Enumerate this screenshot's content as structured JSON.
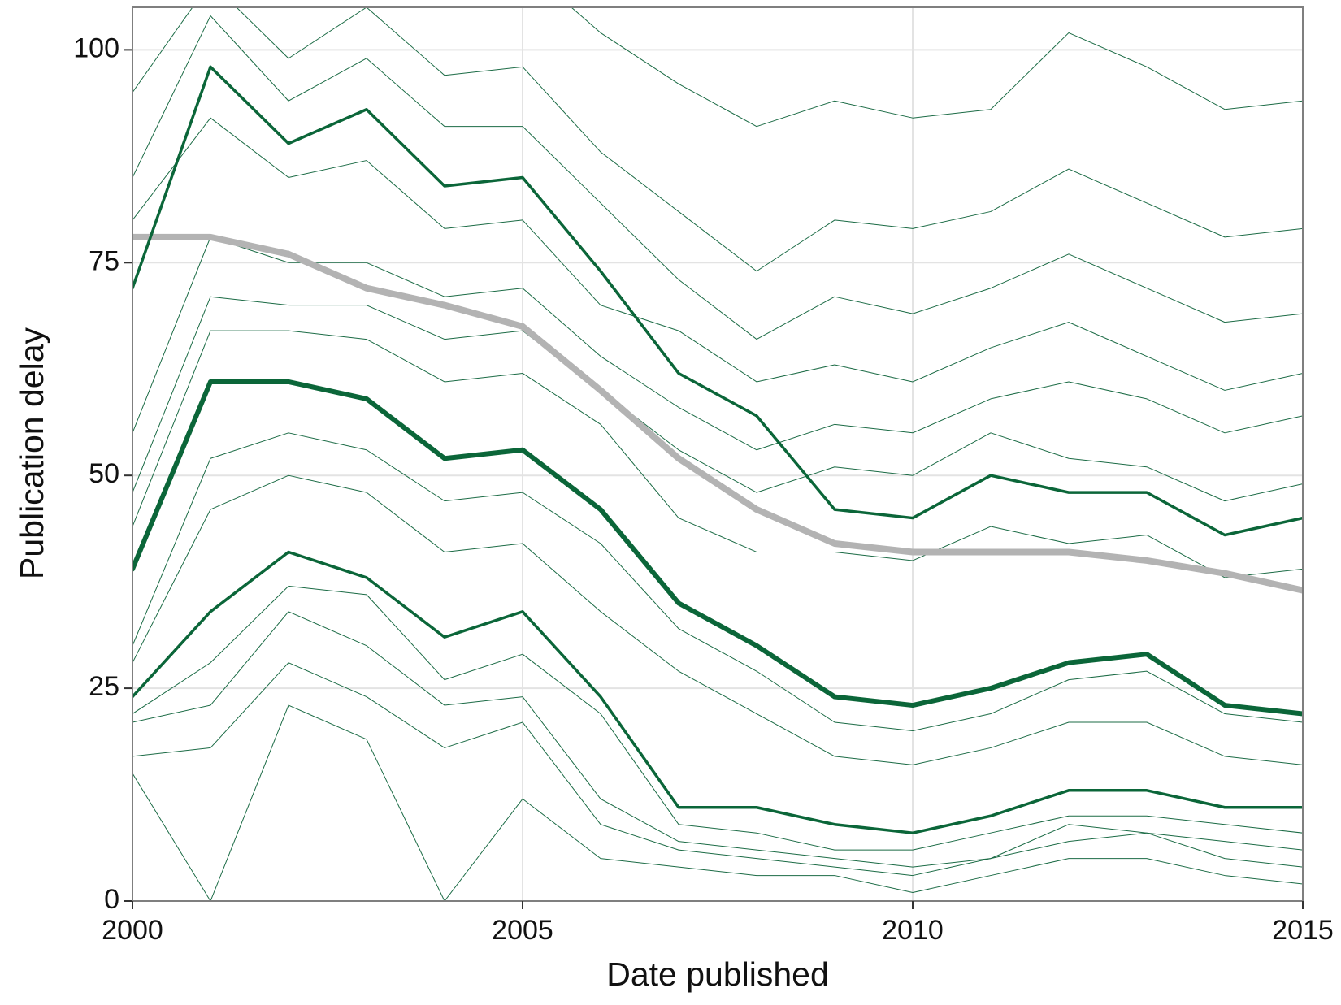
{
  "chart_data": {
    "type": "line",
    "xlabel": "Date published",
    "ylabel": "Publication delay",
    "x": [
      2000,
      2001,
      2002,
      2003,
      2004,
      2005,
      2006,
      2007,
      2008,
      2009,
      2010,
      2011,
      2012,
      2013,
      2014,
      2015
    ],
    "xlim": [
      2000,
      2015
    ],
    "xticks": [
      2000,
      2005,
      2010,
      2015
    ],
    "ylim": [
      0,
      105
    ],
    "yticks": [
      0,
      25,
      50,
      75,
      100
    ],
    "grid": true,
    "series": [
      {
        "color": "#1b6b45",
        "line_width": 1,
        "values": [
          110,
          120,
          110,
          115,
          110,
          110,
          102,
          96,
          91,
          94,
          92,
          93,
          102,
          98,
          93,
          94
        ]
      },
      {
        "color": "#1b6b45",
        "line_width": 1,
        "values": [
          95,
          108,
          99,
          105,
          97,
          98,
          88,
          81,
          74,
          80,
          79,
          81,
          86,
          82,
          78,
          79
        ]
      },
      {
        "color": "#1b6b45",
        "line_width": 1,
        "values": [
          85,
          104,
          94,
          99,
          91,
          91,
          82,
          73,
          66,
          71,
          69,
          72,
          76,
          72,
          68,
          69
        ]
      },
      {
        "color": "#1b6b45",
        "line_width": 1,
        "values": [
          80,
          92,
          85,
          87,
          79,
          80,
          70,
          67,
          61,
          63,
          61,
          65,
          68,
          64,
          60,
          62
        ]
      },
      {
        "color": "#1b6b45",
        "line_width": 1,
        "values": [
          55,
          78,
          75,
          75,
          71,
          72,
          64,
          58,
          53,
          56,
          55,
          59,
          61,
          59,
          55,
          57
        ]
      },
      {
        "color": "#1b6b45",
        "line_width": 1,
        "values": [
          48,
          71,
          70,
          70,
          66,
          67,
          60,
          53,
          48,
          51,
          50,
          55,
          52,
          51,
          47,
          49
        ]
      },
      {
        "color": "#1b6b45",
        "line_width": 1,
        "values": [
          44,
          67,
          67,
          66,
          61,
          62,
          56,
          45,
          41,
          41,
          40,
          44,
          42,
          43,
          38,
          39
        ]
      },
      {
        "color": "#1b6b45",
        "line_width": 1,
        "values": [
          30,
          52,
          55,
          53,
          47,
          48,
          42,
          32,
          27,
          21,
          20,
          22,
          26,
          27,
          22,
          21
        ]
      },
      {
        "color": "#1b6b45",
        "line_width": 1,
        "values": [
          28,
          46,
          50,
          48,
          41,
          42,
          34,
          27,
          22,
          17,
          16,
          18,
          21,
          21,
          17,
          16
        ]
      },
      {
        "color": "#1b6b45",
        "line_width": 1,
        "values": [
          22,
          28,
          37,
          36,
          26,
          29,
          22,
          9,
          8,
          6,
          6,
          8,
          10,
          10,
          9,
          8
        ]
      },
      {
        "color": "#1b6b45",
        "line_width": 1,
        "values": [
          21,
          23,
          34,
          30,
          23,
          24,
          12,
          7,
          6,
          5,
          4,
          5,
          9,
          8,
          7,
          6
        ]
      },
      {
        "color": "#1b6b45",
        "line_width": 1,
        "values": [
          17,
          18,
          28,
          24,
          18,
          21,
          9,
          6,
          5,
          4,
          3,
          5,
          7,
          8,
          5,
          4
        ]
      },
      {
        "color": "#1b6b45",
        "line_width": 1,
        "values": [
          15,
          0,
          23,
          19,
          0,
          12,
          5,
          4,
          3,
          3,
          1,
          3,
          5,
          5,
          3,
          2
        ]
      },
      {
        "color": "#b3b3b3",
        "line_width": 8,
        "values": [
          78,
          78,
          76,
          72,
          70,
          67.5,
          60,
          52,
          46,
          42,
          41,
          41,
          41,
          40,
          38.5,
          36.5
        ]
      },
      {
        "color": "#0b6639",
        "line_width": 3.5,
        "values": [
          72,
          98,
          89,
          93,
          84,
          85,
          74,
          62,
          57,
          46,
          45,
          50,
          48,
          48,
          43,
          45
        ]
      },
      {
        "color": "#0b6639",
        "line_width": 6,
        "values": [
          39,
          61,
          61,
          59,
          52,
          53,
          46,
          35,
          30,
          24,
          23,
          25,
          28,
          29,
          23,
          22
        ]
      },
      {
        "color": "#0b6639",
        "line_width": 3.5,
        "values": [
          24,
          34,
          41,
          38,
          31,
          34,
          24,
          11,
          11,
          9,
          8,
          10,
          13,
          13,
          11,
          11
        ]
      }
    ]
  }
}
